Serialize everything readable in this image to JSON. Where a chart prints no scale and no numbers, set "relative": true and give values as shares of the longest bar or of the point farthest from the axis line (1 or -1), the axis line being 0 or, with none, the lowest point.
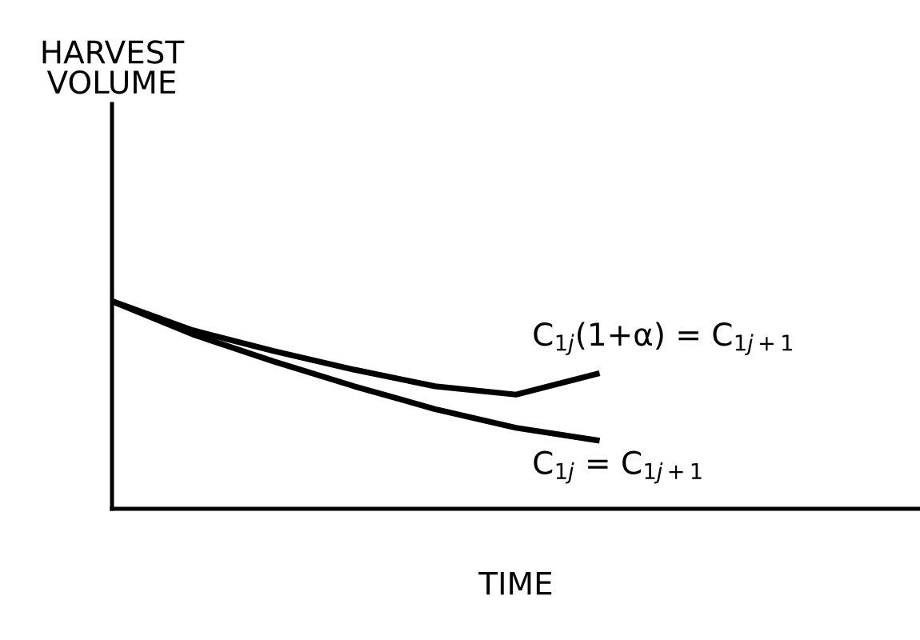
{
  "chart_data": {
    "type": "line",
    "relative": true,
    "xlabel": "TIME",
    "annotations": [
      "HARVEST\nVOLUME"
    ],
    "categories": [
      null,
      null,
      null,
      null,
      null,
      null,
      null,
      null,
      null,
      null,
      null
    ],
    "series": [
      {
        "name": "C$_{1j}$(1+α) = C$_{1j+1}$",
        "color": "#000000",
        "values": [
          1,
          0.86,
          0.76,
          0.67,
          0.59,
          0.55,
          0.65,
          null,
          null,
          null,
          null
        ]
      },
      {
        "name": "C$_{1j}$ = C$_{1j+1}$",
        "color": "#000000",
        "values": [
          1,
          0.84,
          0.71,
          0.59,
          0.48,
          0.39,
          0.33,
          null,
          null,
          null,
          null
        ]
      }
    ],
    "grid": false,
    "legend": false,
    "tick_labels": false,
    "marker": "none",
    "line_style": "solid"
  }
}
